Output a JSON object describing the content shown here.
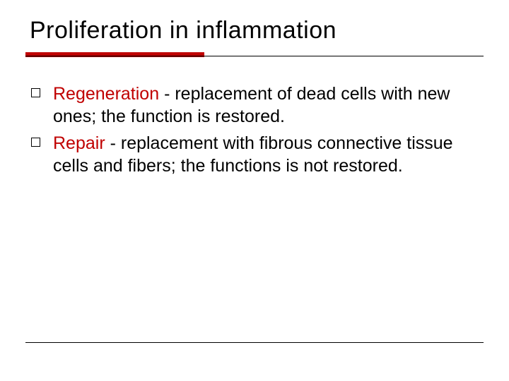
{
  "colors": {
    "accent": "#c00000",
    "text": "#000000",
    "background": "#ffffff",
    "rule": "#000000"
  },
  "title": "Proliferation in inflammation",
  "bullets": [
    {
      "term": "Regeneration",
      "rest": " - replacement of dead cells with new ones; the function is restored."
    },
    {
      "term": " Repair",
      "rest": " - replacement with fibrous connective tissue cells and fibers; the functions is not restored."
    }
  ]
}
